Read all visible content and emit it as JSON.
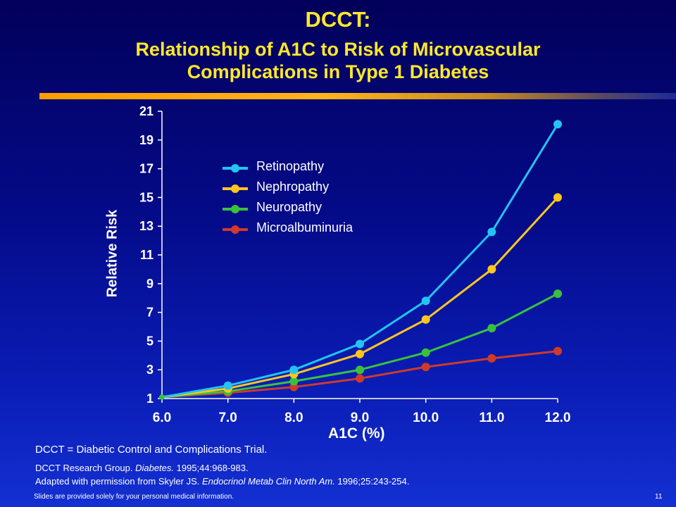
{
  "title": {
    "line1": "DCCT:",
    "line2a": "Relationship of A1C to Risk of Microvascular",
    "line2b": "Complications in Type 1 Diabetes"
  },
  "footer": {
    "definition": "DCCT = Diabetic Control and Complications Trial.",
    "ref1_prefix": "DCCT Research Group. ",
    "ref1_journal": "Diabetes.",
    "ref1_suffix": " 1995;44:968-983.",
    "ref2_prefix": "Adapted with permission from Skyler JS. ",
    "ref2_journal": "Endocrinol Metab Clin North Am.",
    "ref2_suffix": " 1996;25:243-254.",
    "disclaimer": "Slides are provided solely for your personal medical information.",
    "page_number": "11"
  },
  "chart_data": {
    "type": "line",
    "xlabel": "A1C (%)",
    "ylabel": "Relative Risk",
    "xlim": [
      6.0,
      12.0
    ],
    "ylim": [
      1,
      21
    ],
    "x_ticks": [
      "6.0",
      "7.0",
      "8.0",
      "9.0",
      "10.0",
      "11.0",
      "12.0"
    ],
    "y_ticks": [
      "1",
      "3",
      "5",
      "7",
      "9",
      "11",
      "13",
      "15",
      "17",
      "19",
      "21"
    ],
    "x": [
      6.0,
      7.0,
      8.0,
      9.0,
      10.0,
      11.0,
      12.0
    ],
    "legend_position": "top-left",
    "series": [
      {
        "name": "Retinopathy",
        "color": "#22c4f4",
        "values": [
          1.1,
          1.9,
          3.0,
          4.8,
          7.8,
          12.6,
          20.1
        ]
      },
      {
        "name": "Nephropathy",
        "color": "#ffc61e",
        "values": [
          1.1,
          1.7,
          2.7,
          4.1,
          6.5,
          10.0,
          15.0
        ]
      },
      {
        "name": "Neuropathy",
        "color": "#38c23c",
        "values": [
          1.1,
          1.5,
          2.2,
          3.0,
          4.2,
          5.9,
          8.3
        ]
      },
      {
        "name": "Microalbuminuria",
        "color": "#d03a28",
        "values": [
          1.1,
          1.4,
          1.8,
          2.4,
          3.2,
          3.8,
          4.3
        ]
      }
    ]
  }
}
